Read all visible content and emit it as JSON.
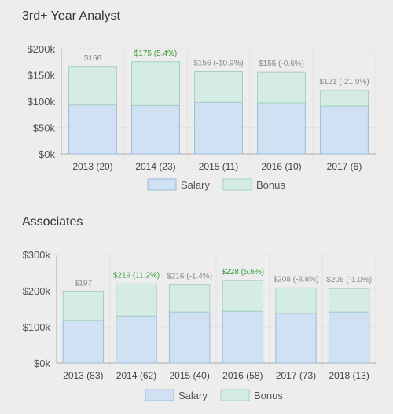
{
  "chart_data": [
    {
      "type": "bar",
      "stacked": true,
      "title": "3rd+ Year Analyst",
      "categories": [
        "2013 (20)",
        "2014 (23)",
        "2015 (11)",
        "2016 (10)",
        "2017 (6)"
      ],
      "series": [
        {
          "name": "Salary",
          "values": [
            93,
            92,
            98,
            97,
            91
          ]
        },
        {
          "name": "Bonus",
          "values": [
            73,
            83,
            58,
            58,
            30
          ]
        }
      ],
      "data_labels": [
        "$166",
        "$175 (5.4%)",
        "$156 (-10.9%)",
        "$155 (-0.6%)",
        "$121 (-21.9%)"
      ],
      "label_colors": [
        "#888888",
        "#3a9a3a",
        "#888888",
        "#888888",
        "#888888"
      ],
      "yticks": [
        "$0k",
        "$50k",
        "$100k",
        "$150k",
        "$200k"
      ],
      "ylim": [
        0,
        200
      ],
      "grid": true,
      "legend": "bottom"
    },
    {
      "type": "bar",
      "stacked": true,
      "title": "Associates",
      "categories": [
        "2013 (83)",
        "2014 (62)",
        "2015 (40)",
        "2016 (58)",
        "2017 (73)",
        "2018 (13)"
      ],
      "series": [
        {
          "name": "Salary",
          "values": [
            118,
            130,
            141,
            143,
            137,
            141
          ]
        },
        {
          "name": "Bonus",
          "values": [
            79,
            89,
            75,
            85,
            71,
            65
          ]
        }
      ],
      "data_labels": [
        "$197",
        "$219 (11.2%)",
        "$216 (-1.4%)",
        "$228 (5.6%)",
        "$208 (-8.8%)",
        "$206 (-1.0%)"
      ],
      "label_colors": [
        "#888888",
        "#3a9a3a",
        "#888888",
        "#3a9a3a",
        "#888888",
        "#888888"
      ],
      "yticks": [
        "$0k",
        "$100k",
        "$200k",
        "$300k"
      ],
      "ylim": [
        0,
        300
      ],
      "grid": true,
      "legend": "bottom"
    }
  ],
  "colors": {
    "salary_fill": "#cfe1f3",
    "salary_stroke": "#9bbbd9",
    "bonus_fill": "#d5ece4",
    "bonus_stroke": "#a5cfbf",
    "grid": "#e2e2e2",
    "axis": "#aaaaaa"
  }
}
